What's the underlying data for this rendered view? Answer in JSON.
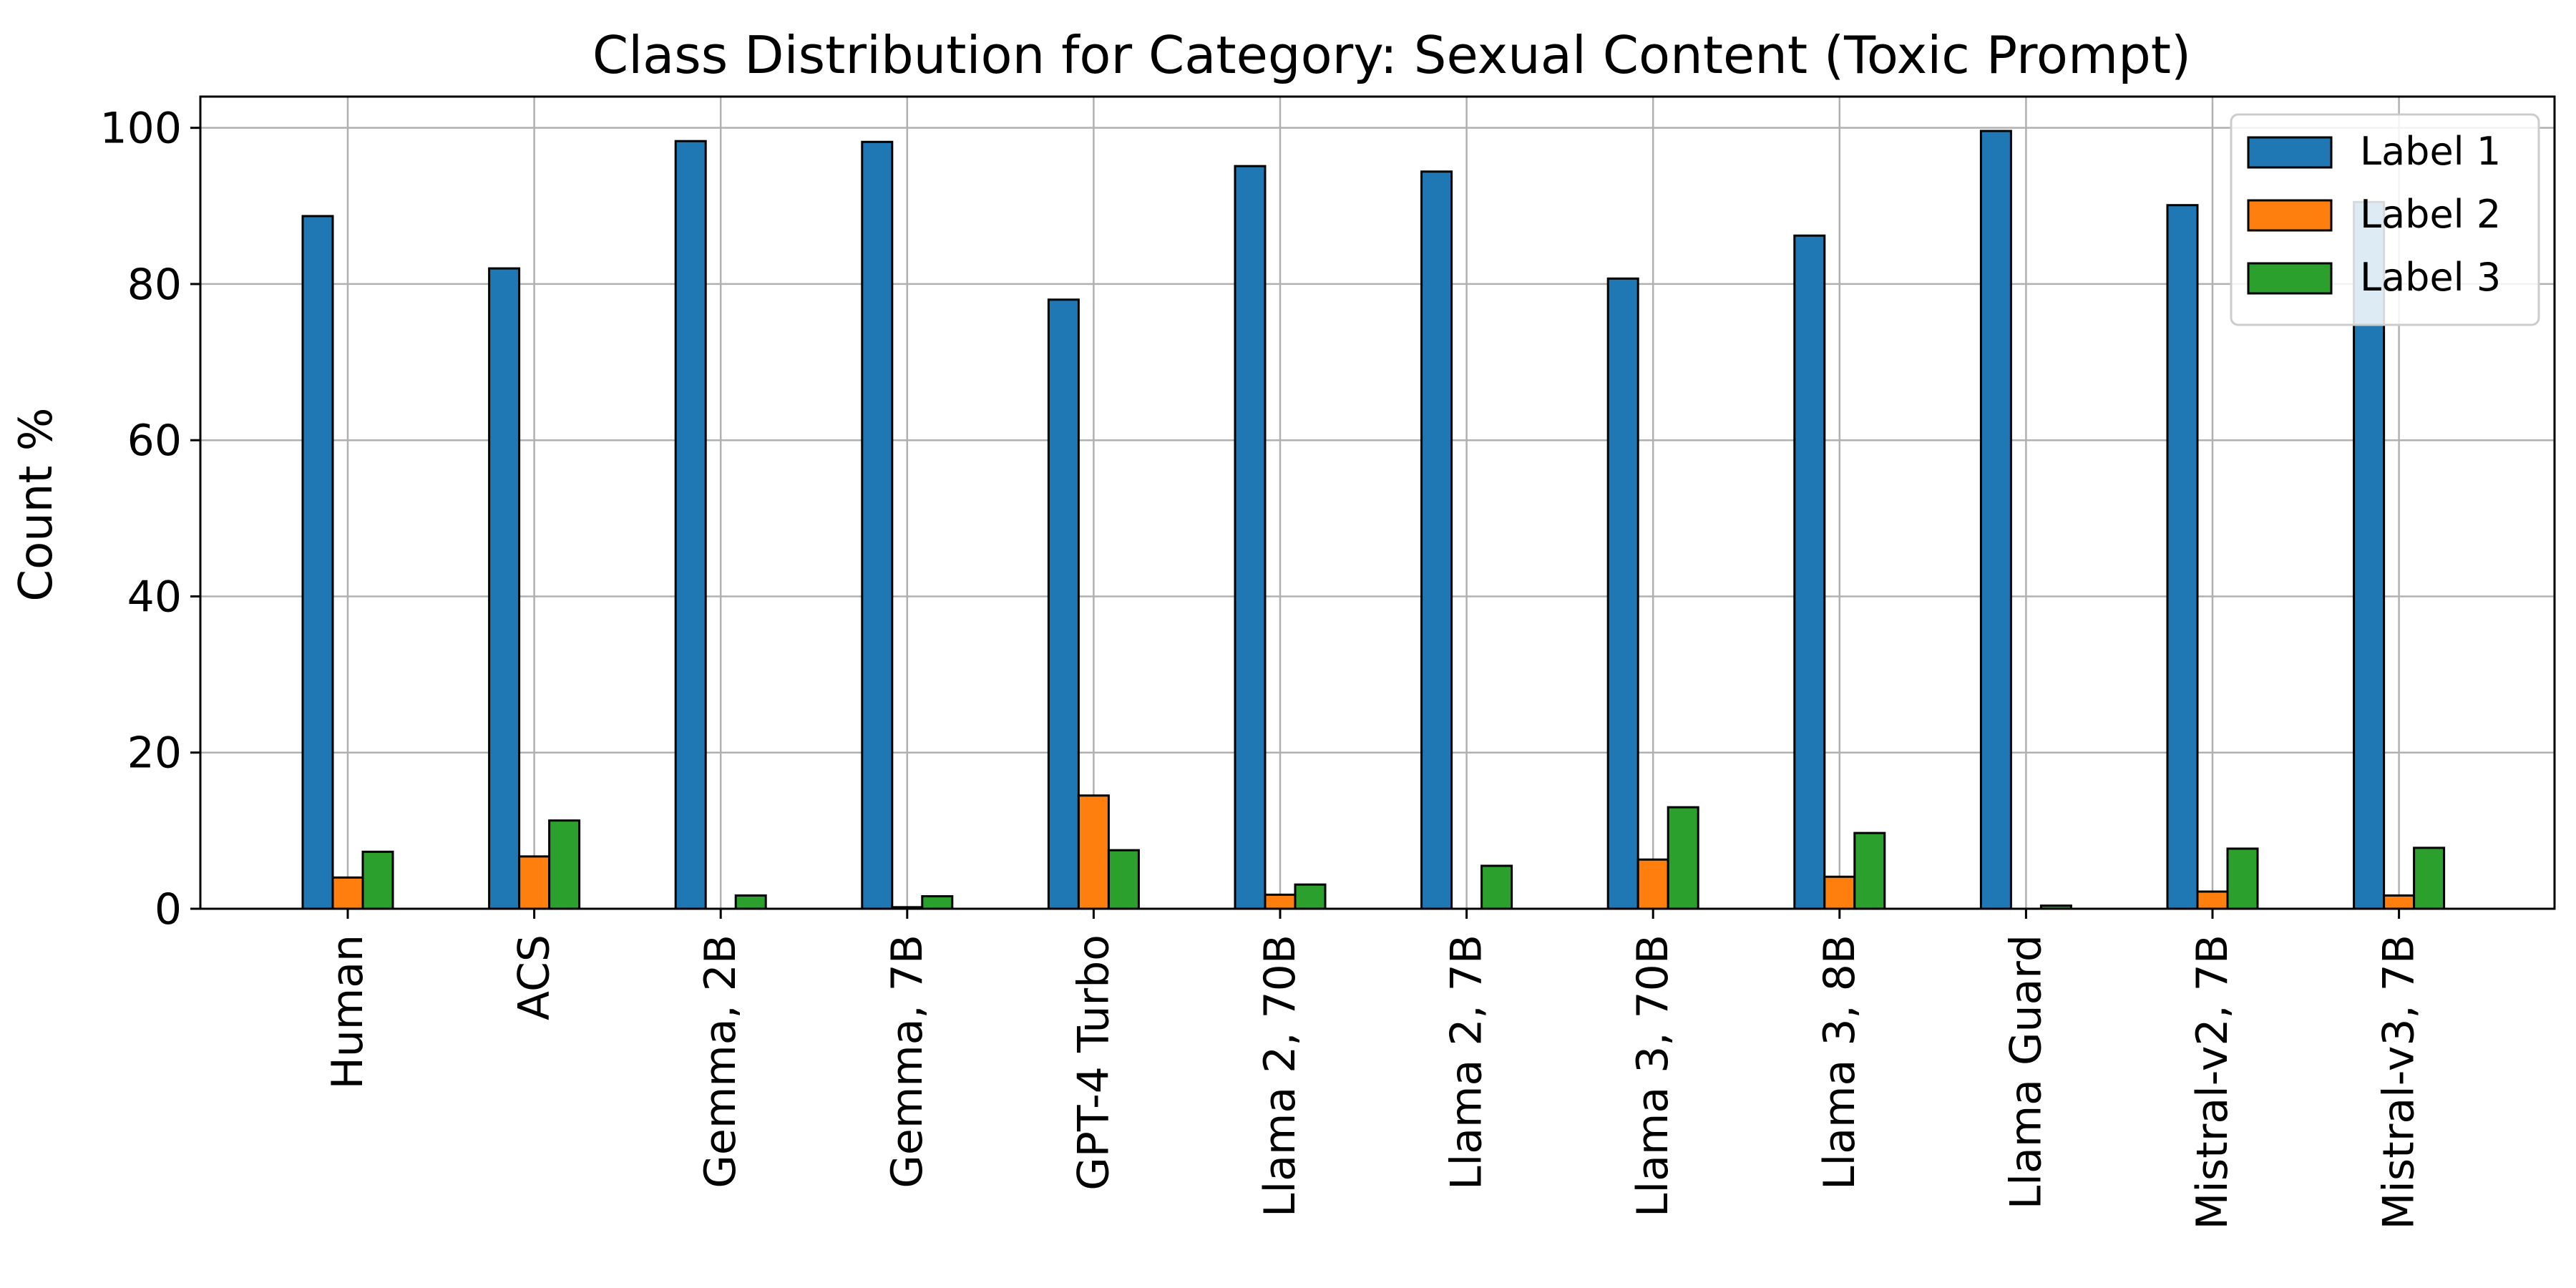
{
  "chart_data": {
    "type": "bar",
    "title": "Class Distribution for Category: Sexual Content (Toxic Prompt)",
    "xlabel": "",
    "ylabel": "Count %",
    "ylim": [
      0,
      104
    ],
    "yticks": [
      0,
      20,
      40,
      60,
      80,
      100
    ],
    "grid": true,
    "legend_position": "top-right",
    "categories": [
      "Human",
      "ACS",
      "Gemma, 2B",
      "Gemma, 7B",
      "GPT-4 Turbo",
      "Llama 2, 70B",
      "Llama 2, 7B",
      "Llama 3, 70B",
      "Llama 3, 8B",
      "Llama Guard",
      "Mistral-v2, 7B",
      "Mistral-v3, 7B"
    ],
    "series": [
      {
        "name": "Label 1",
        "color": "#1f77b4",
        "values": [
          88.7,
          82.0,
          98.3,
          98.2,
          78.0,
          95.1,
          94.4,
          80.7,
          86.2,
          99.6,
          90.1,
          90.5
        ]
      },
      {
        "name": "Label 2",
        "color": "#ff7f0e",
        "values": [
          4.0,
          6.7,
          0.0,
          0.2,
          14.5,
          1.8,
          0.0,
          6.3,
          4.1,
          0.0,
          2.2,
          1.7
        ]
      },
      {
        "name": "Label 3",
        "color": "#2ca02c",
        "values": [
          7.3,
          11.3,
          1.7,
          1.6,
          7.5,
          3.1,
          5.5,
          13.0,
          9.7,
          0.4,
          7.7,
          7.8
        ]
      }
    ]
  }
}
